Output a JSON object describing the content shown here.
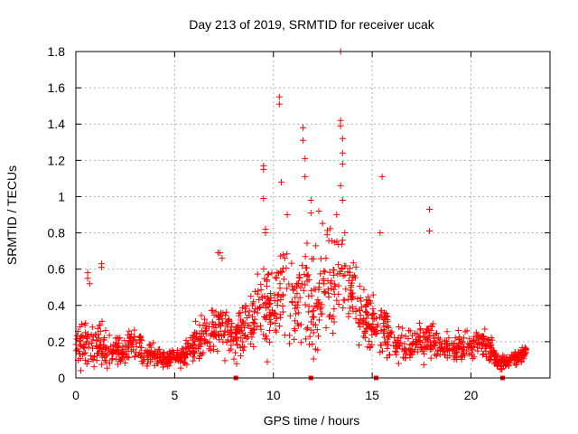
{
  "chart_data": {
    "type": "scatter",
    "title": "Day 213 of 2019, SRMTID for receiver ucak",
    "xlabel": "GPS time / hours",
    "ylabel": "SRMTID / TECUs",
    "xlim": [
      0,
      24
    ],
    "ylim": [
      0,
      1.8
    ],
    "xticks": [
      0,
      5,
      10,
      15,
      20
    ],
    "xtick_labels": [
      "0",
      "5",
      "10",
      "15",
      "20"
    ],
    "yticks": [
      0,
      0.2,
      0.4,
      0.6,
      0.8,
      1,
      1.2,
      1.4,
      1.6,
      1.8
    ],
    "ytick_labels": [
      "0",
      "0.2",
      "0.4",
      "0.6",
      "0.8",
      "1",
      "1.2",
      "1.4",
      "1.6",
      "1.8"
    ],
    "grid": true,
    "marker": "+",
    "color": "#ff0000",
    "generated_point_count": 1400,
    "envelope": [
      [
        0.0,
        0.16,
        0.08
      ],
      [
        0.5,
        0.2,
        0.1
      ],
      [
        1.0,
        0.18,
        0.08
      ],
      [
        1.5,
        0.17,
        0.07
      ],
      [
        2.0,
        0.15,
        0.05
      ],
      [
        2.5,
        0.16,
        0.05
      ],
      [
        3.0,
        0.2,
        0.08
      ],
      [
        3.5,
        0.13,
        0.04
      ],
      [
        4.0,
        0.12,
        0.04
      ],
      [
        4.5,
        0.11,
        0.03
      ],
      [
        5.0,
        0.11,
        0.03
      ],
      [
        5.5,
        0.13,
        0.04
      ],
      [
        6.0,
        0.2,
        0.07
      ],
      [
        6.5,
        0.22,
        0.08
      ],
      [
        7.0,
        0.28,
        0.1
      ],
      [
        7.5,
        0.3,
        0.12
      ],
      [
        8.0,
        0.18,
        0.07
      ],
      [
        8.5,
        0.3,
        0.1
      ],
      [
        9.0,
        0.35,
        0.12
      ],
      [
        9.5,
        0.42,
        0.2
      ],
      [
        10.0,
        0.35,
        0.15
      ],
      [
        10.5,
        0.5,
        0.2
      ],
      [
        11.0,
        0.4,
        0.2
      ],
      [
        11.5,
        0.45,
        0.2
      ],
      [
        12.0,
        0.4,
        0.2
      ],
      [
        12.5,
        0.5,
        0.2
      ],
      [
        13.0,
        0.55,
        0.2
      ],
      [
        13.5,
        0.6,
        0.18
      ],
      [
        14.0,
        0.5,
        0.15
      ],
      [
        14.5,
        0.35,
        0.12
      ],
      [
        15.0,
        0.3,
        0.1
      ],
      [
        15.5,
        0.25,
        0.1
      ],
      [
        16.0,
        0.2,
        0.07
      ],
      [
        16.5,
        0.18,
        0.06
      ],
      [
        17.0,
        0.16,
        0.05
      ],
      [
        17.5,
        0.2,
        0.07
      ],
      [
        18.0,
        0.22,
        0.08
      ],
      [
        18.5,
        0.16,
        0.05
      ],
      [
        19.0,
        0.16,
        0.05
      ],
      [
        19.5,
        0.17,
        0.05
      ],
      [
        20.0,
        0.17,
        0.05
      ],
      [
        20.5,
        0.22,
        0.06
      ],
      [
        21.0,
        0.15,
        0.05
      ],
      [
        21.5,
        0.08,
        0.03
      ],
      [
        22.0,
        0.1,
        0.03
      ],
      [
        22.5,
        0.12,
        0.03
      ],
      [
        22.8,
        0.14,
        0.03
      ]
    ],
    "outliers": [
      [
        0.6,
        0.58
      ],
      [
        0.6,
        0.55
      ],
      [
        0.7,
        0.52
      ],
      [
        1.3,
        0.63
      ],
      [
        1.3,
        0.61
      ],
      [
        7.2,
        0.69
      ],
      [
        7.3,
        0.69
      ],
      [
        7.4,
        0.66
      ],
      [
        9.5,
        1.17
      ],
      [
        9.5,
        1.15
      ],
      [
        9.5,
        0.99
      ],
      [
        9.6,
        0.82
      ],
      [
        9.6,
        0.8
      ],
      [
        10.3,
        1.55
      ],
      [
        10.3,
        1.51
      ],
      [
        10.4,
        1.08
      ],
      [
        10.7,
        0.9
      ],
      [
        11.5,
        1.38
      ],
      [
        11.5,
        1.31
      ],
      [
        11.6,
        1.21
      ],
      [
        11.6,
        1.11
      ],
      [
        11.9,
        0.98
      ],
      [
        11.9,
        0.91
      ],
      [
        12.3,
        0.92
      ],
      [
        13.4,
        1.8
      ],
      [
        13.4,
        1.42
      ],
      [
        13.4,
        1.39
      ],
      [
        13.5,
        1.32
      ],
      [
        13.5,
        1.24
      ],
      [
        13.5,
        1.18
      ],
      [
        13.4,
        1.06
      ],
      [
        13.5,
        0.98
      ],
      [
        15.5,
        1.11
      ],
      [
        15.4,
        0.8
      ],
      [
        17.9,
        0.93
      ],
      [
        17.9,
        0.81
      ]
    ],
    "zero_markers": [
      8.1,
      11.9,
      15.2,
      21.6
    ]
  }
}
